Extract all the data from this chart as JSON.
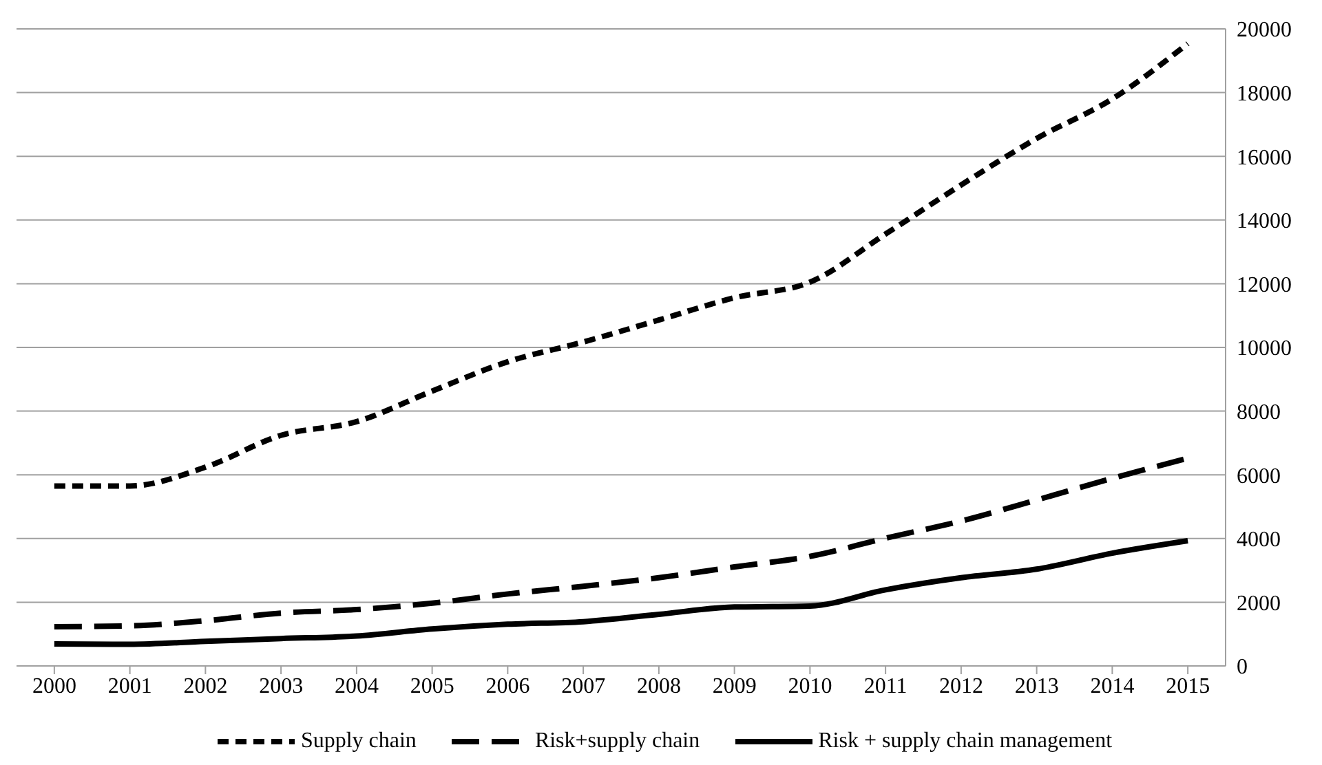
{
  "chart_data": {
    "type": "line",
    "categories": [
      "2000",
      "2001",
      "2002",
      "2003",
      "2004",
      "2005",
      "2006",
      "2007",
      "2008",
      "2009",
      "2010",
      "2011",
      "2012",
      "2013",
      "2014",
      "2015"
    ],
    "series": [
      {
        "name": "Supply chain",
        "color": "#000000",
        "line_style": "dotted",
        "values": [
          5650,
          5650,
          6240,
          7240,
          7670,
          8630,
          9550,
          10170,
          10860,
          11560,
          12050,
          13560,
          15100,
          16560,
          17800,
          19540
        ]
      },
      {
        "name": "Risk+supply chain",
        "color": "#000000",
        "line_style": "dashed",
        "values": [
          1230,
          1260,
          1420,
          1660,
          1770,
          1970,
          2260,
          2500,
          2770,
          3110,
          3440,
          4010,
          4550,
          5210,
          5890,
          6520
        ]
      },
      {
        "name": "Risk + supply chain management",
        "color": "#000000",
        "line_style": "solid",
        "values": [
          690,
          680,
          770,
          860,
          940,
          1160,
          1310,
          1390,
          1620,
          1850,
          1880,
          2390,
          2770,
          3040,
          3540,
          3930
        ]
      }
    ],
    "ylim": [
      0,
      20000
    ],
    "yticks": [
      0,
      2000,
      4000,
      6000,
      8000,
      10000,
      12000,
      14000,
      16000,
      18000,
      20000
    ],
    "grid": "y",
    "legend": "bottom",
    "marker": "none"
  }
}
